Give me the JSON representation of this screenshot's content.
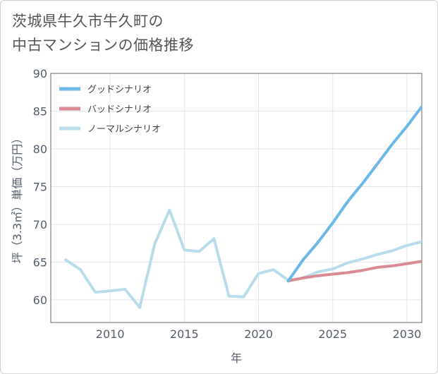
{
  "page": {
    "title_line1": "茨城県牛久市牛久町の",
    "title_line2": "中古マンションの価格推移"
  },
  "chart_data": {
    "type": "line",
    "title": "茨城県牛久市牛久町の中古マンションの価格推移",
    "xlabel": "年",
    "ylabel": "坪（3.3㎡）単価（万円）",
    "xlim": [
      2006,
      2031
    ],
    "ylim": [
      57,
      90
    ],
    "x_ticks": [
      2010,
      2015,
      2020,
      2025,
      2030
    ],
    "y_ticks": [
      60,
      65,
      70,
      75,
      80,
      85,
      90
    ],
    "grid": true,
    "legend_position": "top-left",
    "series": [
      {
        "name": "グッドシナリオ",
        "color": "#6cb8e6",
        "x": [
          2022,
          2023,
          2024,
          2025,
          2026,
          2027,
          2028,
          2029,
          2030,
          2031
        ],
        "values": [
          62.5,
          65.3,
          67.6,
          70.2,
          73.0,
          75.4,
          78.0,
          80.6,
          83.0,
          85.6
        ]
      },
      {
        "name": "バッドシナリオ",
        "color": "#d98a93",
        "x": [
          2022,
          2023,
          2024,
          2025,
          2026,
          2027,
          2028,
          2029,
          2030,
          2031
        ],
        "values": [
          62.5,
          62.9,
          63.2,
          63.4,
          63.6,
          63.9,
          64.3,
          64.5,
          64.8,
          65.1
        ]
      },
      {
        "name": "ノーマルシナリオ",
        "color": "#b9dceb",
        "x": [
          2007,
          2008,
          2009,
          2010,
          2011,
          2012,
          2013,
          2014,
          2015,
          2016,
          2017,
          2018,
          2019,
          2020,
          2021,
          2022,
          2023,
          2024,
          2025,
          2026,
          2027,
          2028,
          2029,
          2030,
          2031
        ],
        "values": [
          65.3,
          64.0,
          61.0,
          61.2,
          61.4,
          59.0,
          67.4,
          71.9,
          66.6,
          66.4,
          68.1,
          60.5,
          60.4,
          63.5,
          64.0,
          62.6,
          62.9,
          63.7,
          64.1,
          64.9,
          65.4,
          66.0,
          66.5,
          67.2,
          67.7
        ]
      }
    ]
  }
}
